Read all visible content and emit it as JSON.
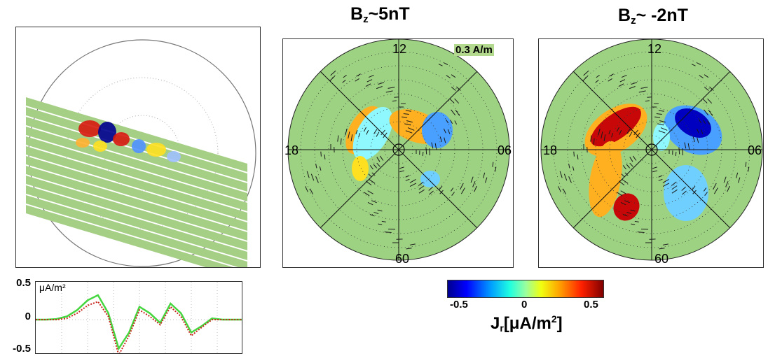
{
  "colors": {
    "background": "#9fce83",
    "swath": "#a6cf86",
    "vector": "#1a1a1a",
    "line_green": "#46d640",
    "line_red": "#c8261c"
  },
  "left_map": {
    "label": "",
    "description_hidden": true
  },
  "left_plot": {
    "unit_label": "μA/m²",
    "yticks": [
      "0.5",
      "0",
      "-0.5"
    ]
  },
  "panel1": {
    "title_main": "B",
    "title_sub": "z",
    "title_rest": "~5nT",
    "clock": {
      "top": "12",
      "left": "18",
      "right": "06",
      "bottom": "60"
    },
    "scale_label": "0.3 A/m"
  },
  "panel2": {
    "title_main": "B",
    "title_sub": "z",
    "title_rest": "~ -2nT",
    "clock": {
      "top": "12",
      "left": "18",
      "right": "06",
      "bottom": "60"
    }
  },
  "colorbar": {
    "ticks": [
      "-0.5",
      "0",
      "0.5"
    ],
    "label_main": "J",
    "label_sub": "r",
    "label_rest": "[μA/m",
    "label_sup": "2",
    "label_end": "]"
  },
  "chart_data": [
    {
      "type": "line",
      "title": "",
      "xlabel": "",
      "ylabel": "μA/m²",
      "ylim": [
        -0.5,
        0.5
      ],
      "grid": true,
      "series": [
        {
          "values": [
            0,
            0,
            0.01,
            0.05,
            0.15,
            0.3,
            0.38,
            0.1,
            -0.45,
            -0.2,
            0.2,
            0.1,
            -0.05,
            0.25,
            0.1,
            -0.2,
            -0.1,
            0.02,
            0,
            0,
            0
          ]
        },
        {
          "values": [
            0,
            0,
            0.0,
            0.02,
            0.1,
            0.22,
            0.28,
            0.05,
            -0.55,
            -0.25,
            0.15,
            0.05,
            -0.08,
            0.2,
            0.05,
            -0.25,
            -0.12,
            0.0,
            0,
            0,
            0
          ]
        }
      ]
    },
    {
      "type": "heatmap",
      "title": "",
      "xlabel": "",
      "ylabel": "Jr [μA/m²]",
      "ylim": [
        -0.6,
        0.6
      ]
    }
  ]
}
